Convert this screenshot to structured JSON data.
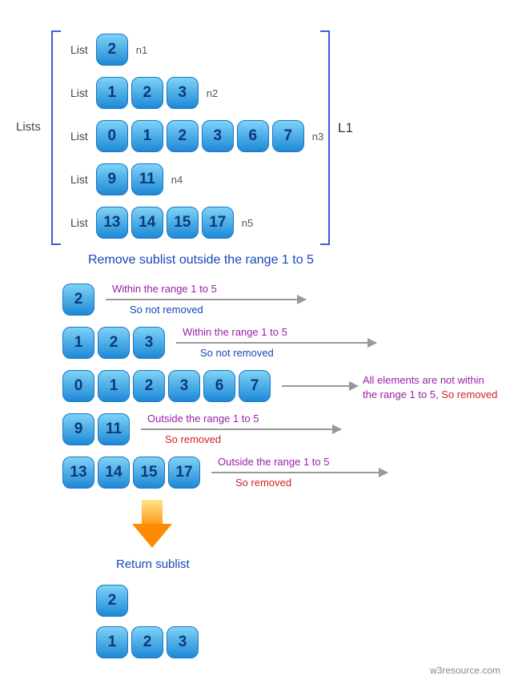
{
  "colors": {
    "cell_gradient_top": "#7ed3f7",
    "cell_gradient_bottom": "#1e88d6",
    "cell_border": "#1976c5",
    "cell_text": "#0b3a7a",
    "bracket": "#3b5bdb",
    "heading_blue": "#1846b9",
    "purple": "#9b1fa8",
    "red": "#d32020",
    "arrow_grey": "#999999",
    "down_arrow_top": "#ffe68a",
    "down_arrow_bottom": "#ff8c00"
  },
  "top": {
    "outer_label": "Lists",
    "l1_label": "L1",
    "row_label": "List",
    "rows": [
      {
        "cells": [
          "2"
        ],
        "n": "n1"
      },
      {
        "cells": [
          "1",
          "2",
          "3"
        ],
        "n": "n2"
      },
      {
        "cells": [
          "0",
          "1",
          "2",
          "3",
          "6",
          "7"
        ],
        "n": "n3"
      },
      {
        "cells": [
          "9",
          "11"
        ],
        "n": "n4"
      },
      {
        "cells": [
          "13",
          "14",
          "15",
          "17"
        ],
        "n": "n5"
      }
    ]
  },
  "heading": "Remove sublist outside the range 1 to 5",
  "checks": [
    {
      "cells": [
        "2"
      ],
      "arrow_width": 250,
      "top_text": "Within the range 1 to 5",
      "bottom_text": "So not removed",
      "bottom_class": "blue-text"
    },
    {
      "cells": [
        "1",
        "2",
        "3"
      ],
      "arrow_width": 250,
      "top_text": "Within the range 1 to 5",
      "bottom_text": "So not removed",
      "bottom_class": "blue-text"
    },
    {
      "cells": [
        "0",
        "1",
        "2",
        "3",
        "6",
        "7"
      ],
      "arrow_width": 95,
      "multi_top": "All elements are not within",
      "multi_bottom_prefix": "the range 1 to 5, ",
      "multi_bottom_suffix": "So removed"
    },
    {
      "cells": [
        "9",
        "11"
      ],
      "arrow_width": 250,
      "top_text": "Outside the range 1 to 5",
      "bottom_text": "So removed",
      "bottom_class": "red-text"
    },
    {
      "cells": [
        "13",
        "14",
        "15",
        "17"
      ],
      "arrow_width": 220,
      "top_text": "Outside the range 1 to 5",
      "bottom_text": "So removed",
      "bottom_class": "red-text"
    }
  ],
  "return_label": "Return sublist",
  "result": [
    [
      "2"
    ],
    [
      "1",
      "2",
      "3"
    ]
  ],
  "watermark": "w3resource.com"
}
